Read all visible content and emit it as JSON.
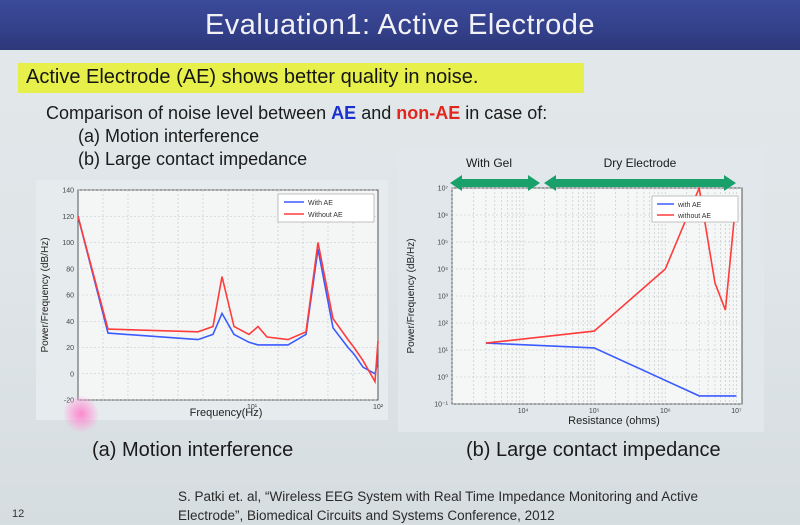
{
  "slide": {
    "title": "Evaluation1: Active Electrode",
    "highlight": "Active Electrode (AE) shows better quality in noise.",
    "comparison": {
      "prefix": "Comparison of noise level between ",
      "ae": "AE",
      "and": " and ",
      "non_ae": "non-AE",
      "suffix": " in case of:"
    },
    "items": [
      "(a) Motion interference",
      "(b) Large contact impedance"
    ],
    "caption_a": "(a) Motion interference",
    "caption_b": "(b) Large contact impedance",
    "citation_line1": "S. Patki et. al, “Wireless EEG System with Real Time Impedance Monitoring and Active",
    "citation_line2": "Electrode”, Biomedical Circuits and Systems Conference, 2012",
    "page_number": "12"
  },
  "colors": {
    "ae": "#1a2fd0",
    "non_ae": "#e2261e",
    "highlight": "#e7f04a",
    "title_bar": "#33408a"
  },
  "chart_data": [
    {
      "type": "line",
      "xlabel": "Frequency(Hz)",
      "ylabel": "Power/Frequency (dB/Hz)",
      "xlim": [
        0,
        100
      ],
      "ylim": [
        -20,
        140
      ],
      "yticks": [
        "-20",
        "0",
        "20",
        "40",
        "60",
        "80",
        "100",
        "120",
        "140"
      ],
      "xticks": [
        "10¹",
        "10²"
      ],
      "legend_position": "top-right",
      "grid": true,
      "series": [
        {
          "name": "With AE",
          "color": "#3b5bff",
          "x": [
            0,
            10,
            40,
            45,
            48,
            52,
            57,
            60,
            70,
            76,
            80,
            85,
            90,
            92,
            95,
            99,
            100
          ],
          "y": [
            120,
            31,
            26,
            30,
            46,
            30,
            24,
            22,
            22,
            30,
            95,
            35,
            20,
            15,
            5,
            0,
            10
          ]
        },
        {
          "name": "Without AE",
          "color": "#ff3b3b",
          "x": [
            0,
            10,
            40,
            45,
            48,
            52,
            57,
            60,
            63,
            70,
            76,
            80,
            85,
            90,
            92,
            95,
            99,
            100
          ],
          "y": [
            120,
            34,
            32,
            36,
            74,
            36,
            30,
            36,
            28,
            26,
            32,
            100,
            42,
            26,
            20,
            10,
            -6,
            25
          ]
        }
      ]
    },
    {
      "type": "line",
      "xlabel": "Resistance (ohms)",
      "ylabel": "Power/Frequency (dB/Hz)",
      "scale": "log",
      "yticks": [
        "10⁻¹",
        "10⁰",
        "10¹",
        "10²",
        "10³",
        "10⁴",
        "10⁵",
        "10⁶",
        "10⁷"
      ],
      "xticks": [
        "10⁴",
        "10⁵",
        "10⁶",
        "10⁷"
      ],
      "regions": [
        {
          "label": "With Gel"
        },
        {
          "label": "Dry Electrode"
        }
      ],
      "legend_position": "top-right",
      "grid": true,
      "series": [
        {
          "name": "with AE",
          "color": "#3b5bff",
          "x": [
            3000,
            100000,
            3000000,
            10000000
          ],
          "y": [
            18,
            12,
            0.2,
            0.2
          ]
        },
        {
          "name": "without AE",
          "color": "#ff3b3b",
          "x": [
            3000,
            100000,
            1000000,
            3000000,
            5000000,
            7000000,
            10000000
          ],
          "y": [
            18,
            50,
            10000,
            10000000,
            3000,
            300,
            5000000
          ]
        }
      ]
    }
  ]
}
